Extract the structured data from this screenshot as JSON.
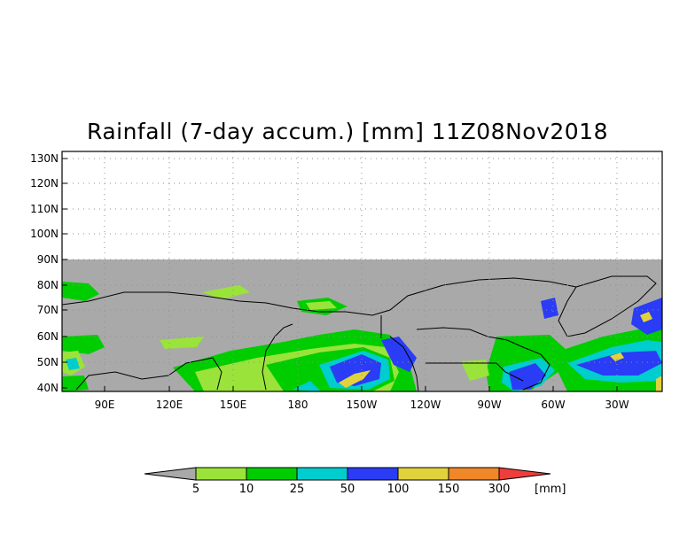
{
  "title": "Rainfall (7-day accum.) [mm] 11Z08Nov2018",
  "map": {
    "lat_labels": [
      "130N",
      "120N",
      "110N",
      "100N",
      "90N",
      "80N",
      "70N",
      "60N",
      "50N",
      "40N"
    ],
    "lon_labels": [
      "90E",
      "120E",
      "150E",
      "180",
      "150W",
      "120W",
      "90W",
      "60W",
      "30W"
    ]
  },
  "colorbar": {
    "unit": "[mm]",
    "labels": [
      "5",
      "10",
      "25",
      "50",
      "100",
      "150",
      "300"
    ],
    "colors": [
      "#a9a9a9",
      "#9ae33a",
      "#00cd00",
      "#00cdcd",
      "#2a3cf5",
      "#e1d23c",
      "#f08728",
      "#f03c3c"
    ]
  },
  "palette": {
    "nodata": "#a9a9a9",
    "plot_background": "#ffffff",
    "grid": "#909090",
    "coast": "#000000"
  }
}
